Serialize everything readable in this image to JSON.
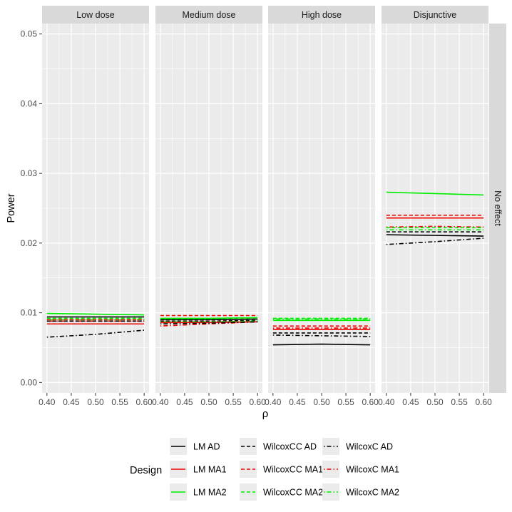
{
  "chart_data": {
    "type": "line",
    "ylabel": "Power",
    "xlabel": "ρ",
    "ylim": [
      -0.0015,
      0.0515
    ],
    "xlim": [
      0.39,
      0.61
    ],
    "yticks": [
      0.0,
      0.01,
      0.02,
      0.03,
      0.04,
      0.05
    ],
    "ytick_labels": [
      "0.00",
      "0.01",
      "0.02",
      "0.03",
      "0.04",
      "0.05"
    ],
    "xticks": [
      0.4,
      0.45,
      0.5,
      0.55,
      0.6
    ],
    "xtick_labels": [
      "0.40",
      "0.45",
      "0.50",
      "0.55",
      "0.60"
    ],
    "facet_row_label": "No effect",
    "panels": [
      {
        "title": "Low dose",
        "series": [
          {
            "name": "LM MA2",
            "x": [
              0.4,
              0.5,
              0.6
            ],
            "values": [
              0.0099,
              0.0098,
              0.0097
            ]
          },
          {
            "name": "LM AD",
            "x": [
              0.4,
              0.5,
              0.6
            ],
            "values": [
              0.0094,
              0.0094,
              0.0094
            ]
          },
          {
            "name": "WilcoxCC MA2",
            "x": [
              0.4,
              0.5,
              0.6
            ],
            "values": [
              0.0092,
              0.0092,
              0.0092
            ]
          },
          {
            "name": "WilcoxC MA2",
            "x": [
              0.4,
              0.5,
              0.6
            ],
            "values": [
              0.009,
              0.009,
              0.009
            ]
          },
          {
            "name": "WilcoxCC MA1",
            "x": [
              0.4,
              0.5,
              0.6
            ],
            "values": [
              0.009,
              0.009,
              0.009
            ]
          },
          {
            "name": "WilcoxC MA1",
            "x": [
              0.4,
              0.5,
              0.6
            ],
            "values": [
              0.0088,
              0.0088,
              0.0088
            ]
          },
          {
            "name": "WilcoxCC AD",
            "x": [
              0.4,
              0.5,
              0.6
            ],
            "values": [
              0.0088,
              0.0088,
              0.0088
            ]
          },
          {
            "name": "LM MA1",
            "x": [
              0.4,
              0.5,
              0.6
            ],
            "values": [
              0.0084,
              0.0084,
              0.0084
            ]
          },
          {
            "name": "WilcoxC AD",
            "x": [
              0.4,
              0.5,
              0.6
            ],
            "values": [
              0.0065,
              0.0069,
              0.0075
            ]
          }
        ]
      },
      {
        "title": "Medium dose",
        "series": [
          {
            "name": "WilcoxCC MA1",
            "x": [
              0.4,
              0.5,
              0.6
            ],
            "values": [
              0.0096,
              0.0096,
              0.0096
            ]
          },
          {
            "name": "LM MA2",
            "x": [
              0.4,
              0.5,
              0.6
            ],
            "values": [
              0.0092,
              0.0092,
              0.0093
            ]
          },
          {
            "name": "WilcoxCC MA2",
            "x": [
              0.4,
              0.5,
              0.6
            ],
            "values": [
              0.0091,
              0.0091,
              0.0091
            ]
          },
          {
            "name": "LM AD",
            "x": [
              0.4,
              0.5,
              0.6
            ],
            "values": [
              0.009,
              0.009,
              0.0091
            ]
          },
          {
            "name": "WilcoxCC AD",
            "x": [
              0.4,
              0.5,
              0.6
            ],
            "values": [
              0.0088,
              0.0088,
              0.0089
            ]
          },
          {
            "name": "WilcoxC MA2",
            "x": [
              0.4,
              0.5,
              0.6
            ],
            "values": [
              0.0087,
              0.0087,
              0.0088
            ]
          },
          {
            "name": "LM MA1",
            "x": [
              0.4,
              0.5,
              0.6
            ],
            "values": [
              0.0086,
              0.0086,
              0.0087
            ]
          },
          {
            "name": "WilcoxC MA1",
            "x": [
              0.4,
              0.5,
              0.6
            ],
            "values": [
              0.0081,
              0.0084,
              0.0087
            ]
          },
          {
            "name": "WilcoxC AD",
            "x": [
              0.4,
              0.5,
              0.6
            ],
            "values": [
              0.0084,
              0.0085,
              0.0087
            ]
          }
        ]
      },
      {
        "title": "High dose",
        "series": [
          {
            "name": "WilcoxCC MA2",
            "x": [
              0.4,
              0.5,
              0.6
            ],
            "values": [
              0.0092,
              0.0092,
              0.0092
            ]
          },
          {
            "name": "WilcoxC MA2",
            "x": [
              0.4,
              0.5,
              0.6
            ],
            "values": [
              0.0091,
              0.0091,
              0.0091
            ]
          },
          {
            "name": "LM MA2",
            "x": [
              0.4,
              0.5,
              0.6
            ],
            "values": [
              0.0089,
              0.0089,
              0.0089
            ]
          },
          {
            "name": "WilcoxCC MA1",
            "x": [
              0.4,
              0.5,
              0.6
            ],
            "values": [
              0.0081,
              0.0081,
              0.0081
            ]
          },
          {
            "name": "WilcoxC MA1",
            "x": [
              0.4,
              0.5,
              0.6
            ],
            "values": [
              0.0078,
              0.0078,
              0.0078
            ]
          },
          {
            "name": "LM MA1",
            "x": [
              0.4,
              0.5,
              0.6
            ],
            "values": [
              0.0076,
              0.0076,
              0.0076
            ]
          },
          {
            "name": "WilcoxCC AD",
            "x": [
              0.4,
              0.5,
              0.6
            ],
            "values": [
              0.0071,
              0.0071,
              0.0071
            ]
          },
          {
            "name": "WilcoxC AD",
            "x": [
              0.4,
              0.5,
              0.6
            ],
            "values": [
              0.0068,
              0.0067,
              0.0066
            ]
          },
          {
            "name": "LM AD",
            "x": [
              0.4,
              0.5,
              0.6
            ],
            "values": [
              0.0054,
              0.0055,
              0.0054
            ]
          }
        ]
      },
      {
        "title": "Disjunctive",
        "series": [
          {
            "name": "LM MA2",
            "x": [
              0.4,
              0.5,
              0.6
            ],
            "values": [
              0.0273,
              0.0271,
              0.0269
            ]
          },
          {
            "name": "WilcoxCC MA1",
            "x": [
              0.4,
              0.5,
              0.6
            ],
            "values": [
              0.024,
              0.024,
              0.024
            ]
          },
          {
            "name": "LM MA1",
            "x": [
              0.4,
              0.5,
              0.6
            ],
            "values": [
              0.0236,
              0.0236,
              0.0236
            ]
          },
          {
            "name": "WilcoxC MA1",
            "x": [
              0.4,
              0.5,
              0.6
            ],
            "values": [
              0.0223,
              0.0224,
              0.0223
            ]
          },
          {
            "name": "WilcoxCC MA2",
            "x": [
              0.4,
              0.5,
              0.6
            ],
            "values": [
              0.0222,
              0.0222,
              0.0222
            ]
          },
          {
            "name": "WilcoxC MA2",
            "x": [
              0.4,
              0.5,
              0.6
            ],
            "values": [
              0.0219,
              0.0219,
              0.0219
            ]
          },
          {
            "name": "WilcoxCC AD",
            "x": [
              0.4,
              0.5,
              0.6
            ],
            "values": [
              0.0216,
              0.0216,
              0.0216
            ]
          },
          {
            "name": "LM AD",
            "x": [
              0.4,
              0.5,
              0.6
            ],
            "values": [
              0.0212,
              0.0211,
              0.021
            ]
          },
          {
            "name": "WilcoxC AD",
            "x": [
              0.4,
              0.5,
              0.6
            ],
            "values": [
              0.0198,
              0.0202,
              0.0207
            ]
          }
        ]
      }
    ],
    "legend": {
      "title": "Design",
      "position": "bottom",
      "entries": [
        {
          "name": "LM AD",
          "color": "#000000",
          "dash": "solid"
        },
        {
          "name": "LM MA1",
          "color": "#ee0000",
          "dash": "solid"
        },
        {
          "name": "LM MA2",
          "color": "#00ee00",
          "dash": "solid"
        },
        {
          "name": "WilcoxCC AD",
          "color": "#000000",
          "dash": "dashed"
        },
        {
          "name": "WilcoxCC MA1",
          "color": "#ee0000",
          "dash": "dashed"
        },
        {
          "name": "WilcoxCC MA2",
          "color": "#00ee00",
          "dash": "dashed"
        },
        {
          "name": "WilcoxC AD",
          "color": "#000000",
          "dash": "dotdash"
        },
        {
          "name": "WilcoxC MA1",
          "color": "#ee0000",
          "dash": "dotdash"
        },
        {
          "name": "WilcoxC MA2",
          "color": "#00ee00",
          "dash": "dotdash"
        }
      ]
    }
  }
}
